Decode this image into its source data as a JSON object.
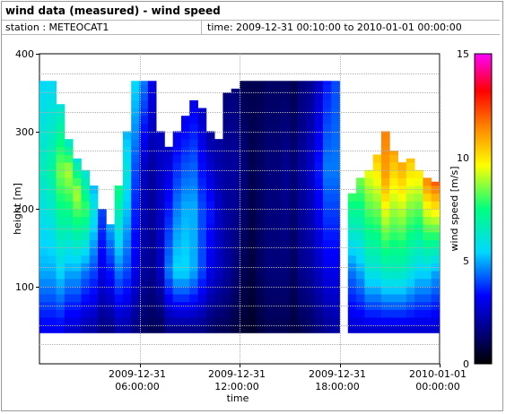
{
  "header": {
    "title": "wind data (measured) - wind speed",
    "station": "station : METEOCAT1",
    "time_range": "time: 2009-12-31 00:10:00 to 2010-01-01 00:00:00"
  },
  "chart_data": {
    "type": "heatmap",
    "title": "wind data (measured) - wind speed",
    "xlabel": "time",
    "ylabel": "height [m]",
    "colorbar_label": "wind speed [m/s]",
    "x_range": [
      "2009-12-31 00:10:00",
      "2010-01-01 00:00:00"
    ],
    "x_range_hours": [
      0,
      24
    ],
    "ylim": [
      0,
      400
    ],
    "colorbar_range": [
      0,
      15
    ],
    "y_ticks": [
      "100",
      "200",
      "300",
      "400"
    ],
    "colorbar_ticks": [
      "0",
      "5",
      "10",
      "15"
    ],
    "x_ticks": [
      {
        "hour": 6,
        "line1": "2009-12-31",
        "line2": "06:00:00"
      },
      {
        "hour": 12,
        "line1": "2009-12-31",
        "line2": "12:00:00"
      },
      {
        "hour": 18,
        "line1": "2009-12-31",
        "line2": "18:00:00"
      },
      {
        "hour": 24,
        "line1": "2010-01-01",
        "line2": "00:00:00"
      }
    ],
    "grid": true,
    "data_gap_hours": [
      18.5,
      18.75
    ],
    "colormap": [
      "#000000",
      "#00007a",
      "#0000ff",
      "#00d8ff",
      "#00ff7f",
      "#ffff00",
      "#ff8800",
      "#ff0000",
      "#ff00ff"
    ],
    "time_bins_hours": [
      0.5,
      1,
      1.5,
      2,
      2.5,
      3,
      3.5,
      4,
      4.5,
      5,
      5.5,
      6,
      6.5,
      7,
      7.5,
      8,
      8.5,
      9,
      9.5,
      10,
      10.5,
      11,
      11.5,
      12,
      12.5,
      13,
      13.5,
      14,
      14.5,
      15,
      15.5,
      16,
      16.5,
      17,
      17.5,
      18,
      18.5,
      19,
      19.5,
      20,
      20.5,
      21,
      21.5,
      22,
      22.5,
      23,
      23.5,
      24
    ],
    "profiles": [
      {
        "top": 365,
        "levels": [
          {
            "h": 40,
            "v": 3.0
          },
          {
            "h": 120,
            "v": 5.0
          },
          {
            "h": 250,
            "v": 6.5
          },
          {
            "h": 365,
            "v": 5.5
          }
        ]
      },
      {
        "top": 365,
        "levels": [
          {
            "h": 40,
            "v": 3.0
          },
          {
            "h": 120,
            "v": 5.0
          },
          {
            "h": 250,
            "v": 7.0
          },
          {
            "h": 365,
            "v": 5.5
          }
        ]
      },
      {
        "top": 335,
        "levels": [
          {
            "h": 40,
            "v": 3.0
          },
          {
            "h": 120,
            "v": 5.5
          },
          {
            "h": 250,
            "v": 8.5
          },
          {
            "h": 335,
            "v": 6.0
          }
        ]
      },
      {
        "top": 290,
        "levels": [
          {
            "h": 40,
            "v": 2.5
          },
          {
            "h": 120,
            "v": 5.0
          },
          {
            "h": 250,
            "v": 9.0
          },
          {
            "h": 290,
            "v": 6.0
          }
        ]
      },
      {
        "top": 265,
        "levels": [
          {
            "h": 40,
            "v": 2.5
          },
          {
            "h": 120,
            "v": 5.0
          },
          {
            "h": 220,
            "v": 9.0
          },
          {
            "h": 265,
            "v": 6.0
          }
        ]
      },
      {
        "top": 250,
        "levels": [
          {
            "h": 40,
            "v": 2.0
          },
          {
            "h": 120,
            "v": 4.5
          },
          {
            "h": 200,
            "v": 8.0
          },
          {
            "h": 250,
            "v": 6.0
          }
        ]
      },
      {
        "top": 230,
        "levels": [
          {
            "h": 40,
            "v": 2.0
          },
          {
            "h": 120,
            "v": 4.0
          },
          {
            "h": 200,
            "v": 6.0
          },
          {
            "h": 230,
            "v": 5.0
          }
        ]
      },
      {
        "top": 200,
        "levels": [
          {
            "h": 40,
            "v": 1.5
          },
          {
            "h": 120,
            "v": 3.0
          },
          {
            "h": 200,
            "v": 4.0
          }
        ]
      },
      {
        "top": 180,
        "levels": [
          {
            "h": 40,
            "v": 1.5
          },
          {
            "h": 120,
            "v": 3.5
          },
          {
            "h": 180,
            "v": 5.0
          }
        ]
      },
      {
        "top": 230,
        "levels": [
          {
            "h": 40,
            "v": 2.0
          },
          {
            "h": 120,
            "v": 4.5
          },
          {
            "h": 230,
            "v": 7.5
          }
        ]
      },
      {
        "top": 300,
        "levels": [
          {
            "h": 40,
            "v": 2.0
          },
          {
            "h": 120,
            "v": 4.0
          },
          {
            "h": 250,
            "v": 6.0
          },
          {
            "h": 300,
            "v": 5.0
          }
        ]
      },
      {
        "top": 365,
        "levels": [
          {
            "h": 40,
            "v": 1.5
          },
          {
            "h": 120,
            "v": 3.0
          },
          {
            "h": 250,
            "v": 4.0
          },
          {
            "h": 365,
            "v": 5.5
          }
        ]
      },
      {
        "top": 365,
        "levels": [
          {
            "h": 40,
            "v": 1.2
          },
          {
            "h": 120,
            "v": 2.0
          },
          {
            "h": 250,
            "v": 2.5
          },
          {
            "h": 365,
            "v": 4.5
          }
        ]
      },
      {
        "top": 365,
        "levels": [
          {
            "h": 40,
            "v": 1.0
          },
          {
            "h": 120,
            "v": 1.8
          },
          {
            "h": 250,
            "v": 2.0
          },
          {
            "h": 365,
            "v": 3.0
          }
        ]
      },
      {
        "top": 300,
        "levels": [
          {
            "h": 40,
            "v": 1.0
          },
          {
            "h": 120,
            "v": 2.5
          },
          {
            "h": 250,
            "v": 2.5
          },
          {
            "h": 300,
            "v": 2.5
          }
        ]
      },
      {
        "top": 280,
        "levels": [
          {
            "h": 40,
            "v": 1.5
          },
          {
            "h": 120,
            "v": 4.5
          },
          {
            "h": 200,
            "v": 3.5
          },
          {
            "h": 280,
            "v": 2.5
          }
        ]
      },
      {
        "top": 300,
        "levels": [
          {
            "h": 40,
            "v": 1.5
          },
          {
            "h": 120,
            "v": 5.5
          },
          {
            "h": 200,
            "v": 4.5
          },
          {
            "h": 300,
            "v": 3.0
          }
        ]
      },
      {
        "top": 320,
        "levels": [
          {
            "h": 40,
            "v": 1.5
          },
          {
            "h": 120,
            "v": 5.5
          },
          {
            "h": 200,
            "v": 5.0
          },
          {
            "h": 320,
            "v": 3.0
          }
        ]
      },
      {
        "top": 340,
        "levels": [
          {
            "h": 40,
            "v": 1.5
          },
          {
            "h": 120,
            "v": 5.0
          },
          {
            "h": 200,
            "v": 5.0
          },
          {
            "h": 340,
            "v": 3.0
          }
        ]
      },
      {
        "top": 330,
        "levels": [
          {
            "h": 40,
            "v": 1.5
          },
          {
            "h": 120,
            "v": 4.0
          },
          {
            "h": 200,
            "v": 4.0
          },
          {
            "h": 330,
            "v": 2.5
          }
        ]
      },
      {
        "top": 300,
        "levels": [
          {
            "h": 40,
            "v": 1.2
          },
          {
            "h": 120,
            "v": 3.0
          },
          {
            "h": 200,
            "v": 3.5
          },
          {
            "h": 300,
            "v": 2.0
          }
        ]
      },
      {
        "top": 290,
        "levels": [
          {
            "h": 40,
            "v": 1.0
          },
          {
            "h": 120,
            "v": 2.5
          },
          {
            "h": 200,
            "v": 2.5
          },
          {
            "h": 290,
            "v": 2.0
          }
        ]
      },
      {
        "top": 350,
        "levels": [
          {
            "h": 40,
            "v": 1.0
          },
          {
            "h": 120,
            "v": 2.0
          },
          {
            "h": 250,
            "v": 2.0
          },
          {
            "h": 350,
            "v": 1.5
          }
        ]
      },
      {
        "top": 355,
        "levels": [
          {
            "h": 40,
            "v": 0.8
          },
          {
            "h": 120,
            "v": 1.5
          },
          {
            "h": 250,
            "v": 2.0
          },
          {
            "h": 355,
            "v": 1.5
          }
        ]
      },
      {
        "top": 365,
        "levels": [
          {
            "h": 40,
            "v": 0.6
          },
          {
            "h": 120,
            "v": 1.0
          },
          {
            "h": 250,
            "v": 1.5
          },
          {
            "h": 365,
            "v": 1.0
          }
        ]
      },
      {
        "top": 365,
        "levels": [
          {
            "h": 40,
            "v": 0.5
          },
          {
            "h": 120,
            "v": 0.8
          },
          {
            "h": 250,
            "v": 1.0
          },
          {
            "h": 365,
            "v": 1.0
          }
        ]
      },
      {
        "top": 365,
        "levels": [
          {
            "h": 40,
            "v": 0.8
          },
          {
            "h": 120,
            "v": 1.2
          },
          {
            "h": 250,
            "v": 1.2
          },
          {
            "h": 365,
            "v": 1.0
          }
        ]
      },
      {
        "top": 365,
        "levels": [
          {
            "h": 40,
            "v": 1.0
          },
          {
            "h": 120,
            "v": 1.5
          },
          {
            "h": 250,
            "v": 1.5
          },
          {
            "h": 365,
            "v": 1.2
          }
        ]
      },
      {
        "top": 365,
        "levels": [
          {
            "h": 40,
            "v": 1.0
          },
          {
            "h": 120,
            "v": 1.5
          },
          {
            "h": 250,
            "v": 1.5
          },
          {
            "h": 365,
            "v": 1.2
          }
        ]
      },
      {
        "top": 365,
        "levels": [
          {
            "h": 40,
            "v": 1.0
          },
          {
            "h": 120,
            "v": 1.5
          },
          {
            "h": 250,
            "v": 1.8
          },
          {
            "h": 365,
            "v": 1.2
          }
        ]
      },
      {
        "top": 365,
        "levels": [
          {
            "h": 40,
            "v": 0.8
          },
          {
            "h": 120,
            "v": 1.2
          },
          {
            "h": 250,
            "v": 1.5
          },
          {
            "h": 365,
            "v": 1.0
          }
        ]
      },
      {
        "top": 365,
        "levels": [
          {
            "h": 40,
            "v": 1.0
          },
          {
            "h": 120,
            "v": 1.8
          },
          {
            "h": 250,
            "v": 2.0
          },
          {
            "h": 365,
            "v": 1.5
          }
        ]
      },
      {
        "top": 365,
        "levels": [
          {
            "h": 40,
            "v": 1.2
          },
          {
            "h": 120,
            "v": 2.0
          },
          {
            "h": 250,
            "v": 2.5
          },
          {
            "h": 365,
            "v": 1.8
          }
        ]
      },
      {
        "top": 365,
        "levels": [
          {
            "h": 40,
            "v": 1.5
          },
          {
            "h": 120,
            "v": 2.5
          },
          {
            "h": 250,
            "v": 3.5
          },
          {
            "h": 365,
            "v": 2.5
          }
        ]
      },
      {
        "top": 365,
        "levels": [
          {
            "h": 40,
            "v": 1.8
          },
          {
            "h": 120,
            "v": 3.0
          },
          {
            "h": 250,
            "v": 4.5
          },
          {
            "h": 365,
            "v": 3.5
          }
        ]
      },
      {
        "top": 365,
        "levels": [
          {
            "h": 40,
            "v": 2.0
          },
          {
            "h": 120,
            "v": 3.0
          },
          {
            "h": 250,
            "v": 4.5
          },
          {
            "h": 365,
            "v": 4.0
          }
        ]
      },
      {
        "top": 0,
        "levels": []
      },
      {
        "top": 220,
        "levels": [
          {
            "h": 40,
            "v": 2.5
          },
          {
            "h": 120,
            "v": 4.5
          },
          {
            "h": 220,
            "v": 8.0
          }
        ]
      },
      {
        "top": 240,
        "levels": [
          {
            "h": 40,
            "v": 2.5
          },
          {
            "h": 120,
            "v": 5.0
          },
          {
            "h": 240,
            "v": 8.5
          }
        ]
      },
      {
        "top": 250,
        "levels": [
          {
            "h": 40,
            "v": 2.5
          },
          {
            "h": 120,
            "v": 6.0
          },
          {
            "h": 250,
            "v": 9.5
          }
        ]
      },
      {
        "top": 270,
        "levels": [
          {
            "h": 40,
            "v": 2.5
          },
          {
            "h": 120,
            "v": 6.0
          },
          {
            "h": 270,
            "v": 10.5
          }
        ]
      },
      {
        "top": 300,
        "levels": [
          {
            "h": 40,
            "v": 2.5
          },
          {
            "h": 120,
            "v": 6.5
          },
          {
            "h": 240,
            "v": 11.0
          },
          {
            "h": 300,
            "v": 11.5
          }
        ]
      },
      {
        "top": 275,
        "levels": [
          {
            "h": 40,
            "v": 2.5
          },
          {
            "h": 120,
            "v": 6.5
          },
          {
            "h": 275,
            "v": 11.0
          }
        ]
      },
      {
        "top": 260,
        "levels": [
          {
            "h": 40,
            "v": 2.5
          },
          {
            "h": 120,
            "v": 6.5
          },
          {
            "h": 260,
            "v": 11.0
          }
        ]
      },
      {
        "top": 265,
        "levels": [
          {
            "h": 40,
            "v": 2.5
          },
          {
            "h": 120,
            "v": 6.0
          },
          {
            "h": 265,
            "v": 10.5
          }
        ]
      },
      {
        "top": 250,
        "levels": [
          {
            "h": 40,
            "v": 2.5
          },
          {
            "h": 120,
            "v": 5.5
          },
          {
            "h": 250,
            "v": 10.0
          }
        ]
      },
      {
        "top": 240,
        "levels": [
          {
            "h": 40,
            "v": 2.5
          },
          {
            "h": 120,
            "v": 5.5
          },
          {
            "h": 240,
            "v": 11.5
          }
        ]
      },
      {
        "top": 235,
        "levels": [
          {
            "h": 40,
            "v": 2.5
          },
          {
            "h": 120,
            "v": 5.0
          },
          {
            "h": 235,
            "v": 12.0
          }
        ]
      }
    ]
  }
}
